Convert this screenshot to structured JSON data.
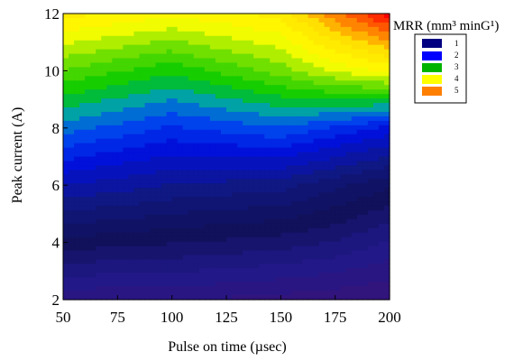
{
  "chart_data": {
    "type": "heatmap",
    "subtype": "filled-contour",
    "xlabel": "Pulse on time (µsec)",
    "ylabel": "Peak current (A)",
    "xlim": [
      50,
      200
    ],
    "ylim": [
      2,
      12
    ],
    "x_ticks": [
      "50",
      "75",
      "100",
      "125",
      "150",
      "175",
      "200"
    ],
    "y_ticks": [
      "2",
      "4",
      "6",
      "8",
      "10",
      "12"
    ],
    "x_tick_values": [
      50,
      75,
      100,
      125,
      150,
      175,
      200
    ],
    "y_tick_values": [
      2,
      4,
      6,
      8,
      10,
      12
    ],
    "grid": false,
    "legend_placement": "top-right",
    "legend": {
      "title": "MRR (mm³ minG¹)",
      "entries": [
        {
          "label": "1",
          "color": "#000080"
        },
        {
          "label": "2",
          "color": "#0000ff"
        },
        {
          "label": "3",
          "color": "#00b400"
        },
        {
          "label": "4",
          "color": "#ffff00"
        },
        {
          "label": "5",
          "color": "#ff7f00"
        }
      ]
    },
    "x": [
      50,
      100,
      150,
      175,
      200
    ],
    "y": [
      2,
      4,
      6,
      8,
      10,
      12
    ],
    "z": [
      [
        0.3,
        0.3,
        0.2,
        0.15,
        0.1
      ],
      [
        1.1,
        1.0,
        0.9,
        0.8,
        0.6
      ],
      [
        1.9,
        1.7,
        1.6,
        1.4,
        1.2
      ],
      [
        2.7,
        2.4,
        2.6,
        2.4,
        2.2
      ],
      [
        3.5,
        3.2,
        3.6,
        3.9,
        4.1
      ],
      [
        4.3,
        4.1,
        4.3,
        4.9,
        5.4
      ]
    ],
    "colorscale": [
      [
        0.0,
        "#3a1278"
      ],
      [
        0.6,
        "#20198a"
      ],
      [
        1.1,
        "#101058"
      ],
      [
        1.6,
        "#101880"
      ],
      [
        2.2,
        "#0010e0"
      ],
      [
        2.6,
        "#0050f0"
      ],
      [
        2.9,
        "#00a8a0"
      ],
      [
        3.15,
        "#00c800"
      ],
      [
        3.6,
        "#70e000"
      ],
      [
        4.0,
        "#ffff00"
      ],
      [
        4.5,
        "#ffe000"
      ],
      [
        5.0,
        "#ff6000"
      ],
      [
        5.4,
        "#ff0000"
      ]
    ]
  }
}
